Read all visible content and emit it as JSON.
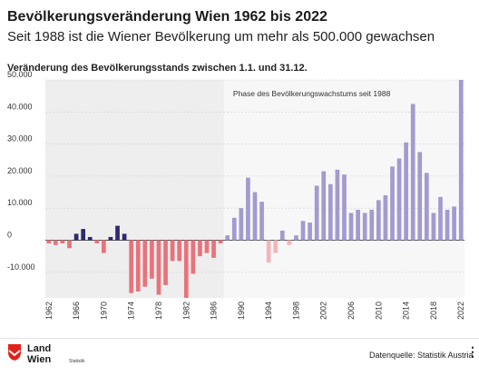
{
  "header": {
    "title": "Bevölkerungsveränderung Wien 1962 bis 2022",
    "subtitle": "Seit 1988 ist die Wiener Bevölkerung um mehr als 500.000 gewachsen"
  },
  "chart_data": {
    "type": "bar",
    "title": "Veränderung des Bevölkerungsstands zwischen 1.1. und 31.12.",
    "annotation": "Phase des Bevölkerungswachstums seit 1988",
    "ylim": [
      -18000,
      50000
    ],
    "yticks": [
      -10000,
      0,
      10000,
      20000,
      30000,
      40000,
      50000
    ],
    "ytick_labels": [
      "-10.000",
      "0",
      "10.000",
      "20.000",
      "30.000",
      "40.000",
      "50.000"
    ],
    "xtick_labels": [
      "1962",
      "1966",
      "1970",
      "1974",
      "1978",
      "1982",
      "1986",
      "1990",
      "1994",
      "1998",
      "2002",
      "2006",
      "2010",
      "2014",
      "2018",
      "2022"
    ],
    "grid": true,
    "categories": [
      "1962",
      "1963",
      "1964",
      "1965",
      "1966",
      "1967",
      "1968",
      "1969",
      "1970",
      "1971",
      "1972",
      "1973",
      "1974",
      "1975",
      "1976",
      "1977",
      "1978",
      "1979",
      "1980",
      "1981",
      "1982",
      "1983",
      "1984",
      "1985",
      "1986",
      "1987",
      "1988",
      "1989",
      "1990",
      "1991",
      "1992",
      "1993",
      "1994",
      "1995",
      "1996",
      "1997",
      "1998",
      "1999",
      "2000",
      "2001",
      "2002",
      "2003",
      "2004",
      "2005",
      "2006",
      "2007",
      "2008",
      "2009",
      "2010",
      "2011",
      "2012",
      "2013",
      "2014",
      "2015",
      "2016",
      "2017",
      "2018",
      "2019",
      "2020",
      "2021",
      "2022"
    ],
    "values": [
      -1000,
      -1500,
      -1000,
      -2500,
      2000,
      3500,
      1000,
      -1000,
      -4000,
      1000,
      4500,
      2000,
      -16500,
      -16000,
      -14500,
      -12000,
      -17000,
      -14000,
      -6500,
      -6500,
      -18000,
      -10500,
      -5000,
      -4000,
      -5500,
      -1000,
      1500,
      7000,
      10000,
      19500,
      15000,
      12000,
      -7000,
      -4000,
      3000,
      -1500,
      1500,
      6000,
      5500,
      17000,
      21500,
      17500,
      22000,
      20500,
      8500,
      9500,
      8500,
      9500,
      12500,
      14000,
      23000,
      25500,
      30500,
      42500,
      27500,
      21000,
      8500,
      13500,
      9500,
      10500,
      50000
    ],
    "colors": {
      "positive_pre1988": "#2e2a6e",
      "negative_pre1988": "#e8737b",
      "positive_post1988": "#a29bcf",
      "negative_post1988": "#f3b5b9",
      "phase_background": "#f7f7f7",
      "early_background": "#eeeeee"
    }
  },
  "footer": {
    "logo_line1": "Land",
    "logo_line2": "Wien",
    "logo_sub": "Statistik",
    "source": "Datenquelle: Statistik Austria",
    "menu_icon": "⋮"
  }
}
